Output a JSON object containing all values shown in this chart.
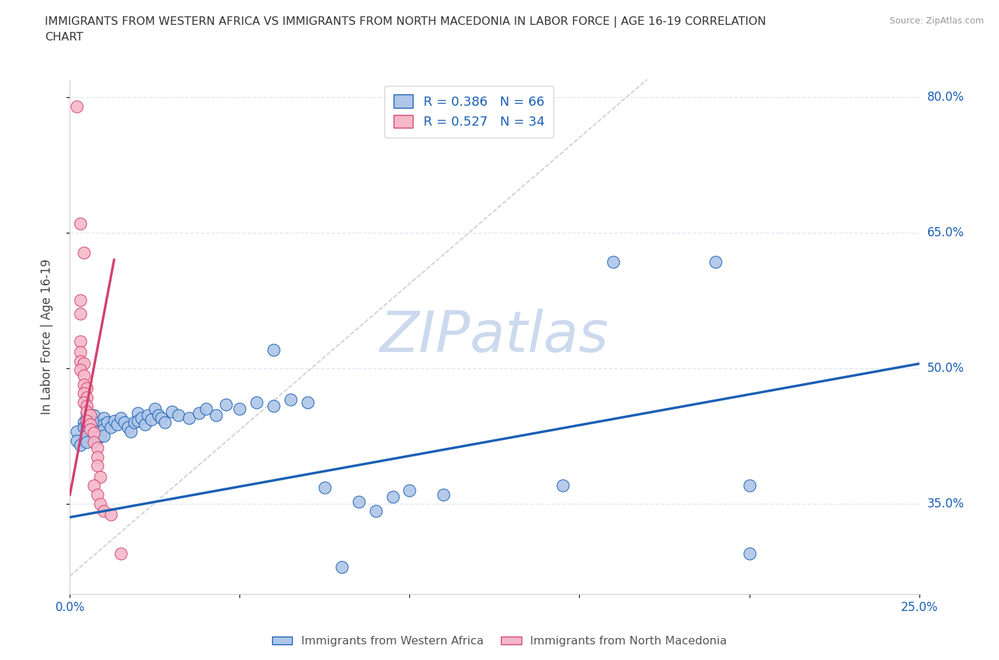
{
  "title": "IMMIGRANTS FROM WESTERN AFRICA VS IMMIGRANTS FROM NORTH MACEDONIA IN LABOR FORCE | AGE 16-19 CORRELATION\nCHART",
  "source": "Source: ZipAtlas.com",
  "ylabel": "In Labor Force | Age 16-19",
  "xlim": [
    0.0,
    0.25
  ],
  "ylim": [
    0.25,
    0.82
  ],
  "ytick_positions": [
    0.35,
    0.5,
    0.65,
    0.8
  ],
  "ytick_labels": [
    "35.0%",
    "50.0%",
    "65.0%",
    "80.0%"
  ],
  "blue_R": 0.386,
  "blue_N": 66,
  "pink_R": 0.527,
  "pink_N": 34,
  "blue_color": "#aec6e8",
  "pink_color": "#f5b8c8",
  "blue_line_color": "#1a5fb4",
  "pink_line_color": "#d44070",
  "blue_scatter": [
    [
      0.002,
      0.43
    ],
    [
      0.002,
      0.42
    ],
    [
      0.003,
      0.415
    ],
    [
      0.004,
      0.44
    ],
    [
      0.004,
      0.435
    ],
    [
      0.005,
      0.45
    ],
    [
      0.005,
      0.445
    ],
    [
      0.005,
      0.438
    ],
    [
      0.005,
      0.432
    ],
    [
      0.005,
      0.425
    ],
    [
      0.005,
      0.418
    ],
    [
      0.006,
      0.443
    ],
    [
      0.006,
      0.435
    ],
    [
      0.007,
      0.448
    ],
    [
      0.007,
      0.44
    ],
    [
      0.008,
      0.43
    ],
    [
      0.008,
      0.422
    ],
    [
      0.009,
      0.425
    ],
    [
      0.01,
      0.445
    ],
    [
      0.01,
      0.438
    ],
    [
      0.01,
      0.432
    ],
    [
      0.01,
      0.425
    ],
    [
      0.011,
      0.44
    ],
    [
      0.012,
      0.435
    ],
    [
      0.013,
      0.442
    ],
    [
      0.014,
      0.438
    ],
    [
      0.015,
      0.445
    ],
    [
      0.016,
      0.44
    ],
    [
      0.017,
      0.435
    ],
    [
      0.018,
      0.43
    ],
    [
      0.019,
      0.44
    ],
    [
      0.02,
      0.45
    ],
    [
      0.02,
      0.442
    ],
    [
      0.021,
      0.445
    ],
    [
      0.022,
      0.438
    ],
    [
      0.023,
      0.448
    ],
    [
      0.024,
      0.443
    ],
    [
      0.025,
      0.455
    ],
    [
      0.026,
      0.448
    ],
    [
      0.027,
      0.445
    ],
    [
      0.028,
      0.44
    ],
    [
      0.03,
      0.452
    ],
    [
      0.032,
      0.448
    ],
    [
      0.035,
      0.445
    ],
    [
      0.038,
      0.45
    ],
    [
      0.04,
      0.455
    ],
    [
      0.043,
      0.448
    ],
    [
      0.046,
      0.46
    ],
    [
      0.05,
      0.455
    ],
    [
      0.055,
      0.462
    ],
    [
      0.06,
      0.458
    ],
    [
      0.06,
      0.52
    ],
    [
      0.065,
      0.465
    ],
    [
      0.07,
      0.462
    ],
    [
      0.075,
      0.368
    ],
    [
      0.08,
      0.28
    ],
    [
      0.085,
      0.352
    ],
    [
      0.09,
      0.342
    ],
    [
      0.095,
      0.358
    ],
    [
      0.1,
      0.365
    ],
    [
      0.11,
      0.36
    ],
    [
      0.145,
      0.37
    ],
    [
      0.16,
      0.618
    ],
    [
      0.19,
      0.618
    ],
    [
      0.2,
      0.37
    ],
    [
      0.2,
      0.295
    ]
  ],
  "pink_scatter": [
    [
      0.002,
      0.79
    ],
    [
      0.003,
      0.66
    ],
    [
      0.004,
      0.628
    ],
    [
      0.003,
      0.575
    ],
    [
      0.003,
      0.56
    ],
    [
      0.003,
      0.53
    ],
    [
      0.003,
      0.518
    ],
    [
      0.003,
      0.508
    ],
    [
      0.004,
      0.505
    ],
    [
      0.003,
      0.498
    ],
    [
      0.004,
      0.492
    ],
    [
      0.004,
      0.482
    ],
    [
      0.005,
      0.478
    ],
    [
      0.004,
      0.472
    ],
    [
      0.005,
      0.468
    ],
    [
      0.004,
      0.462
    ],
    [
      0.005,
      0.458
    ],
    [
      0.005,
      0.452
    ],
    [
      0.006,
      0.448
    ],
    [
      0.005,
      0.442
    ],
    [
      0.006,
      0.438
    ],
    [
      0.006,
      0.432
    ],
    [
      0.007,
      0.428
    ],
    [
      0.007,
      0.418
    ],
    [
      0.008,
      0.412
    ],
    [
      0.008,
      0.402
    ],
    [
      0.008,
      0.392
    ],
    [
      0.009,
      0.38
    ],
    [
      0.007,
      0.37
    ],
    [
      0.008,
      0.36
    ],
    [
      0.009,
      0.35
    ],
    [
      0.01,
      0.342
    ],
    [
      0.012,
      0.338
    ],
    [
      0.015,
      0.295
    ]
  ],
  "blue_trendline": [
    0.0,
    0.335,
    0.25,
    0.505
  ],
  "pink_trendline_x": [
    0.0,
    0.013
  ],
  "pink_trendline_y": [
    0.36,
    0.62
  ],
  "diagonal_line": [
    [
      0.0,
      0.27
    ],
    [
      0.17,
      0.82
    ]
  ],
  "watermark": "ZIPatlas",
  "watermark_color": "#ccd9ee",
  "grid_color": "#dde8f5",
  "background_color": "#ffffff"
}
